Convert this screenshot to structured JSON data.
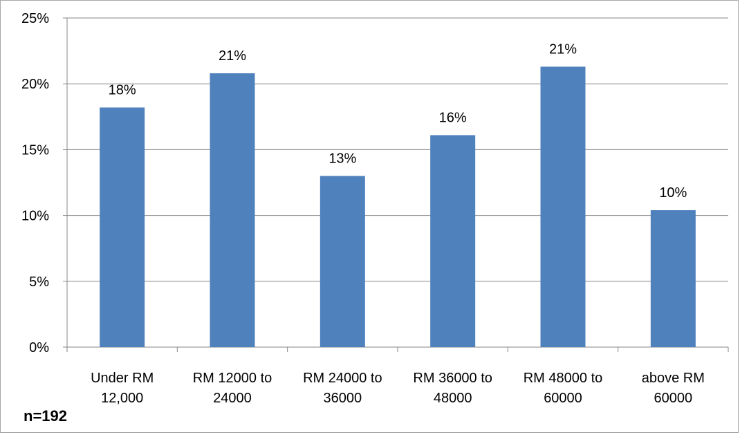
{
  "chart_data": {
    "type": "bar",
    "categories": [
      [
        "Under RM",
        "12,000"
      ],
      [
        "RM 12000 to",
        "24000"
      ],
      [
        "RM 24000 to",
        "36000"
      ],
      [
        "RM 36000 to",
        "48000"
      ],
      [
        "RM 48000 to",
        "60000"
      ],
      [
        "above RM",
        "60000"
      ]
    ],
    "values": [
      18.2,
      20.8,
      13.0,
      16.1,
      21.3,
      10.4
    ],
    "data_labels": [
      "18%",
      "21%",
      "13%",
      "16%",
      "21%",
      "10%"
    ],
    "y_ticks": [
      "0%",
      "5%",
      "10%",
      "15%",
      "20%",
      "25%"
    ],
    "ylim": [
      0,
      25
    ],
    "grid": true,
    "legend": "none",
    "bar_color": "#4f81bd",
    "note": "n=192"
  }
}
